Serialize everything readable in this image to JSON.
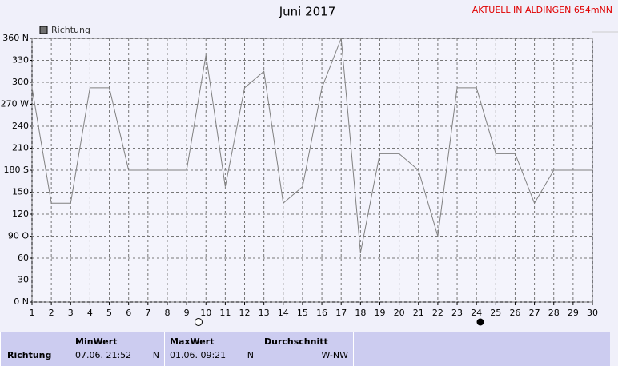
{
  "chart_data": {
    "type": "line",
    "title": "Juni 2017",
    "annotation": "AKTUELL IN ALDINGEN 654mNN",
    "x": [
      1,
      2,
      3,
      4,
      5,
      6,
      7,
      8,
      9,
      10,
      11,
      12,
      13,
      14,
      15,
      16,
      17,
      18,
      19,
      20,
      21,
      22,
      23,
      24,
      25,
      26,
      27,
      28,
      29,
      30
    ],
    "series": [
      {
        "name": "Richtung",
        "color": "#808080",
        "values": [
          292.5,
          135,
          135,
          292.5,
          292.5,
          180,
          180,
          180,
          180,
          337.5,
          157.5,
          292.5,
          315,
          135,
          157.5,
          292.5,
          360,
          67.5,
          202.5,
          202.5,
          180,
          90,
          292.5,
          292.5,
          202.5,
          202.5,
          135,
          180,
          180,
          180
        ]
      }
    ],
    "xlim": [
      1,
      30
    ],
    "xticks": [
      1,
      2,
      3,
      4,
      5,
      6,
      7,
      8,
      9,
      10,
      11,
      12,
      13,
      14,
      15,
      16,
      17,
      18,
      19,
      20,
      21,
      22,
      23,
      24,
      25,
      26,
      27,
      28,
      29,
      30
    ],
    "ylim": [
      0,
      360
    ],
    "yticks": [
      {
        "value": 0,
        "label": "0 N"
      },
      30,
      60,
      {
        "value": 90,
        "label": "90 O"
      },
      120,
      150,
      {
        "value": 180,
        "label": "180 S"
      },
      210,
      240,
      {
        "value": 270,
        "label": "270 W"
      },
      300,
      330,
      {
        "value": 360,
        "label": "360 N"
      }
    ],
    "grid": true
  },
  "summary": {
    "row_label": "Richtung",
    "columns": [
      {
        "title": "MinWert",
        "date": "07.06.  21:52",
        "dir": "N"
      },
      {
        "title": "MaxWert",
        "date": "01.06.  09:21",
        "dir": "N"
      },
      {
        "title": "Durchschnitt",
        "dir": "W-NW"
      }
    ]
  }
}
